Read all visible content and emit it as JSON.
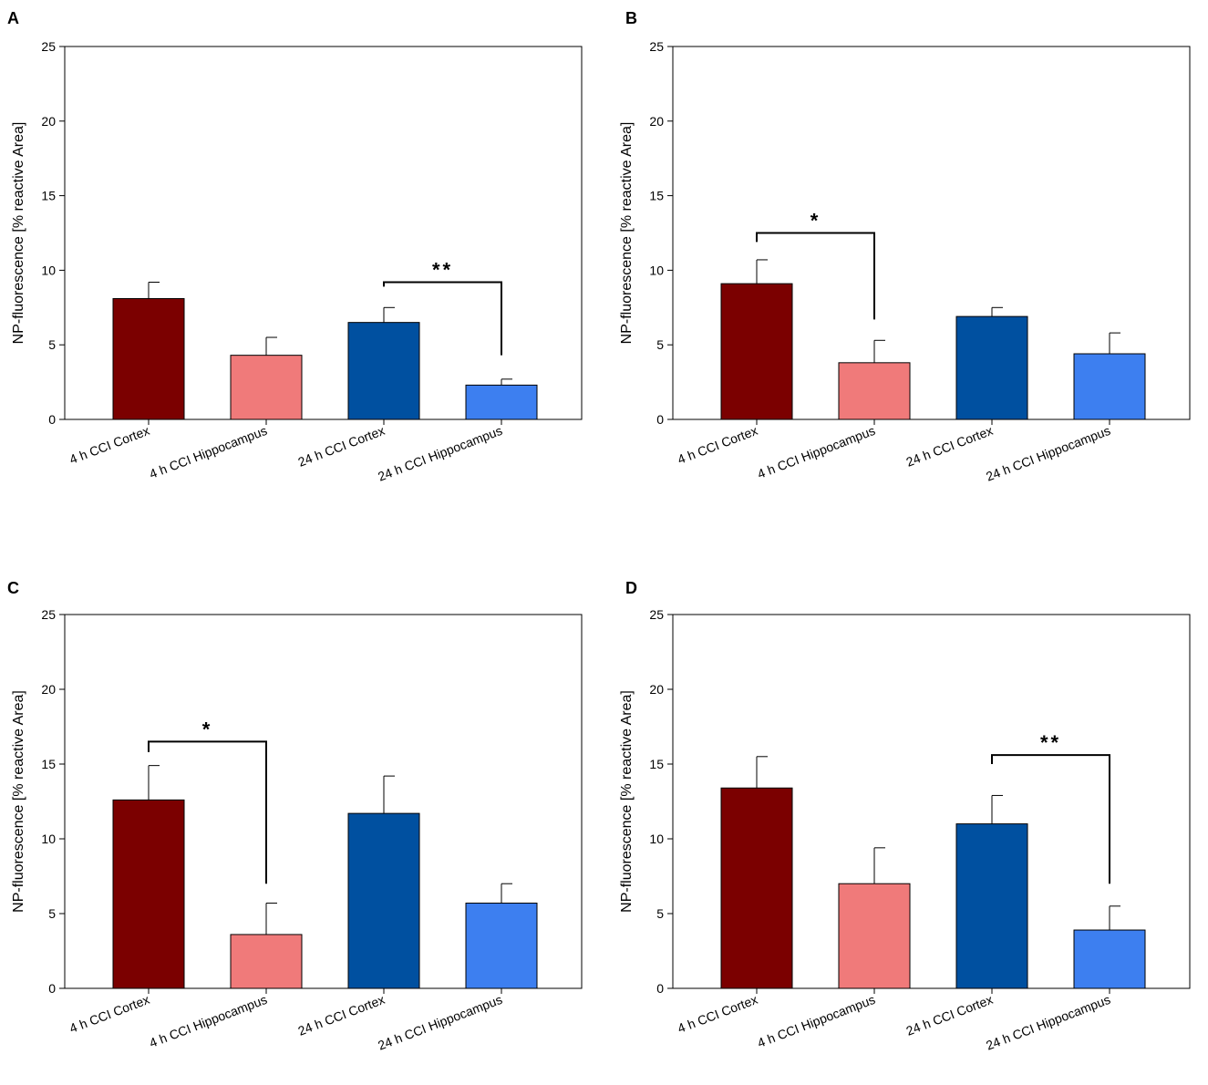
{
  "colors": {
    "dark_red": "#7b0000",
    "light_red": "#f07a7a",
    "dark_blue": "#0050a0",
    "light_blue": "#3d7ff0",
    "axis": "#000000"
  },
  "chart_data": [
    {
      "type": "bar",
      "panel": "A",
      "ylabel": "NP-fluorescence [% reactive Area]",
      "ylim": [
        0,
        25
      ],
      "yticks": [
        0,
        5,
        10,
        15,
        20,
        25
      ],
      "categories": [
        "4 h CCI Cortex",
        "4 h CCI Hippocampus",
        "24 h CCI Cortex",
        "24 h CCI Hippocampus"
      ],
      "values": [
        8.1,
        4.3,
        6.5,
        2.3
      ],
      "errors": [
        1.1,
        1.2,
        1.0,
        0.4
      ],
      "bar_colors": [
        "#7b0000",
        "#f07a7a",
        "#0050a0",
        "#3d7ff0"
      ],
      "significance": [
        {
          "from": 2,
          "to": 3,
          "level": 9.2,
          "label": "**",
          "left_end": 8.9,
          "right_end": 4.3
        }
      ]
    },
    {
      "type": "bar",
      "panel": "B",
      "ylabel": "NP-fluorescence [% reactive Area]",
      "ylim": [
        0,
        25
      ],
      "yticks": [
        0,
        5,
        10,
        15,
        20,
        25
      ],
      "categories": [
        "4 h CCI Cortex",
        "4 h CCI Hippocampus",
        "24 h CCI Cortex",
        "24 h CCI Hippocampus"
      ],
      "values": [
        9.1,
        3.8,
        6.9,
        4.4
      ],
      "errors": [
        1.6,
        1.5,
        0.6,
        1.4
      ],
      "bar_colors": [
        "#7b0000",
        "#f07a7a",
        "#0050a0",
        "#3d7ff0"
      ],
      "significance": [
        {
          "from": 0,
          "to": 1,
          "level": 12.5,
          "label": "*",
          "left_end": 11.9,
          "right_end": 6.7
        }
      ]
    },
    {
      "type": "bar",
      "panel": "C",
      "ylabel": "NP-fluorescence [% reactive Area]",
      "ylim": [
        0,
        25
      ],
      "yticks": [
        0,
        5,
        10,
        15,
        20,
        25
      ],
      "categories": [
        "4 h CCI Cortex",
        "4 h CCI Hippocampus",
        "24 h CCI Cortex",
        "24 h CCI Hippocampus"
      ],
      "values": [
        12.6,
        3.6,
        11.7,
        5.7
      ],
      "errors": [
        2.3,
        2.1,
        2.5,
        1.3
      ],
      "bar_colors": [
        "#7b0000",
        "#f07a7a",
        "#0050a0",
        "#3d7ff0"
      ],
      "significance": [
        {
          "from": 0,
          "to": 1,
          "level": 16.5,
          "label": "*",
          "left_end": 15.8,
          "right_end": 7.0
        }
      ]
    },
    {
      "type": "bar",
      "panel": "D",
      "ylabel": "NP-fluorescence [% reactive Area]",
      "ylim": [
        0,
        25
      ],
      "yticks": [
        0,
        5,
        10,
        15,
        20,
        25
      ],
      "categories": [
        "4 h CCI Cortex",
        "4 h CCI Hippocampus",
        "24 h CCI Cortex",
        "24 h CCI Hippocampus"
      ],
      "values": [
        13.4,
        7.0,
        11.0,
        3.9
      ],
      "errors": [
        2.1,
        2.4,
        1.9,
        1.6
      ],
      "bar_colors": [
        "#7b0000",
        "#f07a7a",
        "#0050a0",
        "#3d7ff0"
      ],
      "significance": [
        {
          "from": 2,
          "to": 3,
          "level": 15.6,
          "label": "**",
          "left_end": 15.0,
          "right_end": 7.0
        }
      ]
    }
  ]
}
